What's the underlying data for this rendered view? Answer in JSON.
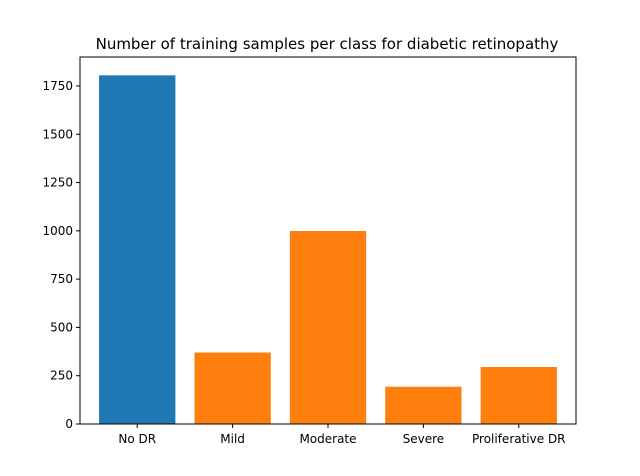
{
  "chart_data": {
    "type": "bar",
    "title": "Number of training samples per class for diabetic retinopathy",
    "xlabel": "",
    "ylabel": "",
    "categories": [
      "No DR",
      "Mild",
      "Moderate",
      "Severe",
      "Proliferative DR"
    ],
    "values": [
      1805,
      370,
      999,
      193,
      295
    ],
    "bar_colors": [
      "#1f77b4",
      "#ff7f0e",
      "#ff7f0e",
      "#ff7f0e",
      "#ff7f0e"
    ],
    "ylim": [
      0,
      1900
    ],
    "yticks": [
      0,
      250,
      500,
      750,
      1000,
      1250,
      1500,
      1750
    ],
    "grid": false,
    "legend": "none"
  }
}
